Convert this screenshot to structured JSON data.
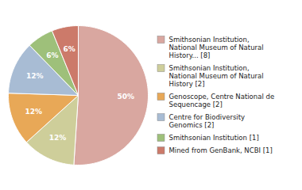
{
  "chart_data": {
    "type": "pie",
    "categories": [
      "Smithsonian Institution,\nNational Museum of Natural\nHistory... [8]",
      "Smithsonian Institution,\nNational Museum of Natural\nHistory [2]",
      "Genoscope, Centre National de\nSequencage [2]",
      "Centre for Biodiversity\nGenomics [2]",
      "Smithsonian Institution [1]",
      "Mined from GenBank, NCBI [1]"
    ],
    "values": [
      50,
      12,
      12,
      12,
      6,
      6
    ],
    "value_labels": [
      "50%",
      "12%",
      "12%",
      "12%",
      "6%",
      "6%"
    ],
    "colors": [
      "#d9a7a0",
      "#cece9a",
      "#e8a857",
      "#a8bcd4",
      "#9ec07a",
      "#cc7a6a"
    ],
    "data_labels": true,
    "legend": "right"
  }
}
